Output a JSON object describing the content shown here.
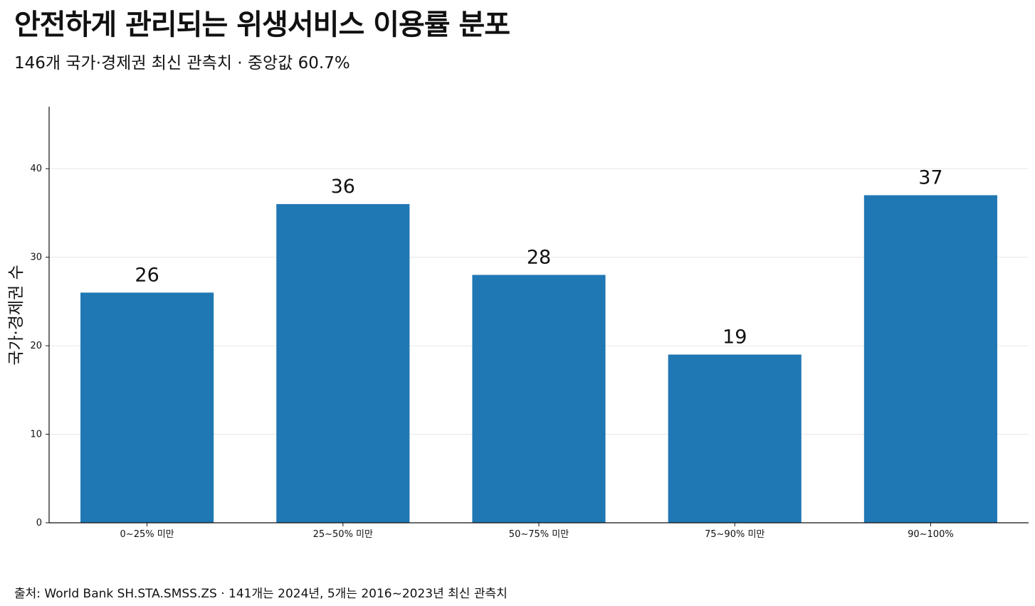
{
  "header": {
    "title": "안전하게 관리되는 위생서비스 이용률 분포",
    "subtitle": "146개 국가·경제권 최신 관측치 · 중앙값 60.7%"
  },
  "footer": {
    "source": "출처: World Bank SH.STA.SMSS.ZS · 141개는 2024년, 5개는 2016~2023년 최신 관측치"
  },
  "chart_data": {
    "type": "bar",
    "categories": [
      "0~25% 미만",
      "25~50% 미만",
      "50~75% 미만",
      "75~90% 미만",
      "90~100%"
    ],
    "values": [
      26,
      36,
      28,
      19,
      37
    ],
    "ylabel": "국가·경제권 수",
    "xlabel": "",
    "ylim": [
      0,
      47
    ],
    "yticks": [
      0,
      10,
      20,
      30,
      40
    ],
    "grid": "horizontal",
    "bar_color": "#1f77b4",
    "data_labels": true
  }
}
